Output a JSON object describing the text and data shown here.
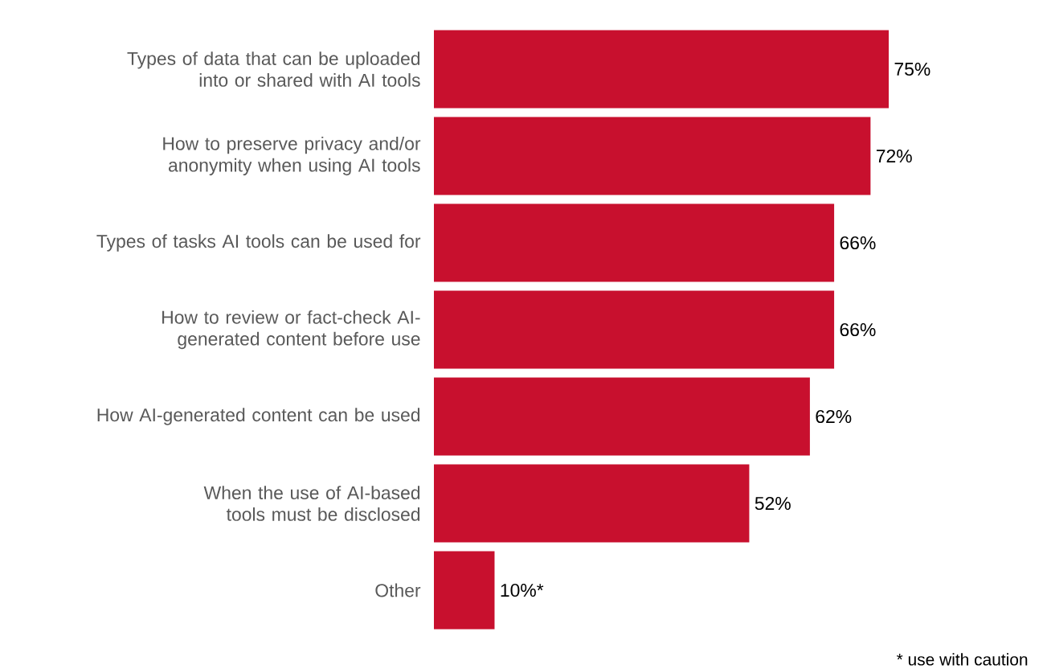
{
  "chart_data": {
    "type": "bar",
    "orientation": "horizontal",
    "categories": [
      "Types of data that can be uploaded into or shared with AI tools",
      "How to preserve privacy and/or anonymity when using AI tools",
      "Types of tasks AI tools can be used for",
      "How to review or fact-check AI-generated content before use",
      "How AI-generated content can be used",
      "When the use of AI-based tools must be disclosed",
      "Other"
    ],
    "values": [
      75,
      72,
      66,
      66,
      62,
      52,
      10
    ],
    "value_labels": [
      "75%",
      "72%",
      "66%",
      "66%",
      "62%",
      "52%",
      "10%*"
    ],
    "color": "#c8102e",
    "annotations": [
      "* use with caution"
    ]
  }
}
